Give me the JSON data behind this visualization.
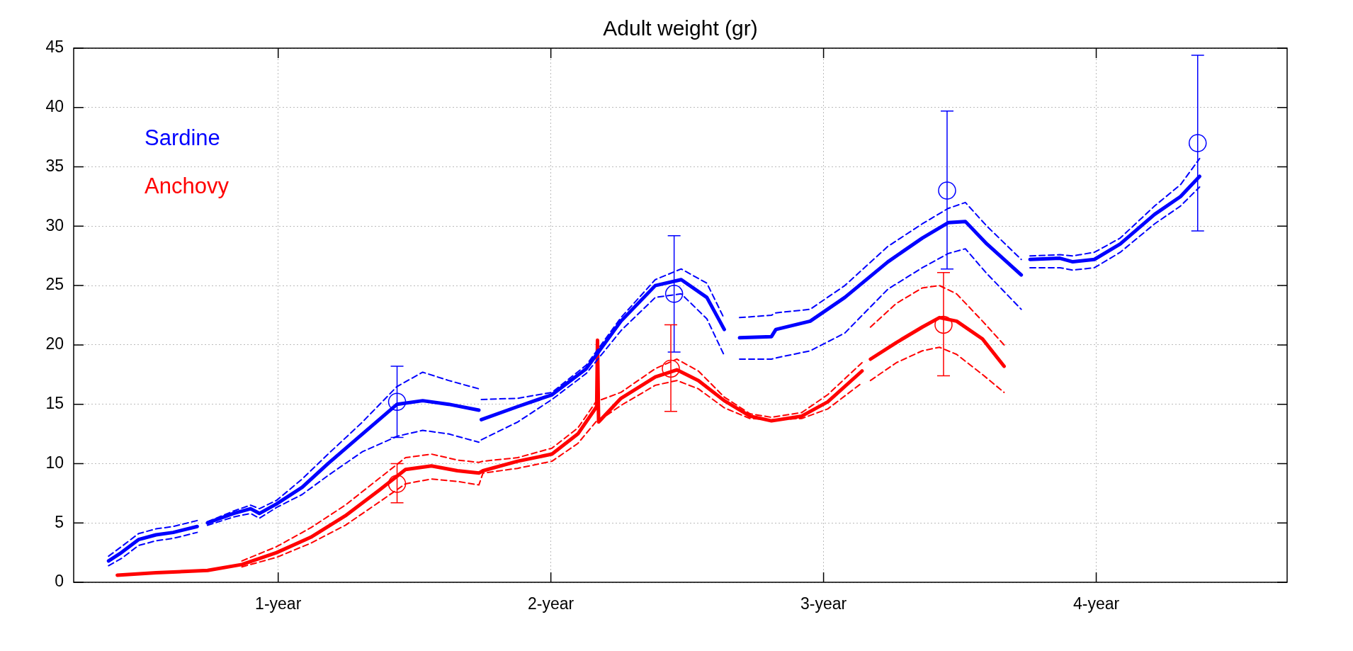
{
  "chart_data": {
    "type": "line",
    "title": "Adult weight (gr)",
    "xlim": [
      0.25,
      4.7
    ],
    "xticks": [
      {
        "value": 1,
        "label": "1-year"
      },
      {
        "value": 2,
        "label": "2-year"
      },
      {
        "value": 3,
        "label": "3-year"
      },
      {
        "value": 4,
        "label": "4-year"
      }
    ],
    "ylim": [
      0,
      45
    ],
    "yticks": [
      0,
      5,
      10,
      15,
      20,
      25,
      30,
      35,
      40,
      45
    ],
    "grid": true,
    "legend": "top left",
    "marker": "none",
    "series": [
      {
        "name": "Sardine",
        "color": "#0000ff",
        "line_style": "solid",
        "x": [
          0.378,
          0.425,
          0.488,
          0.552,
          0.615,
          0.703,
          0.72,
          0.741,
          0.836,
          0.899,
          0.931,
          0.994,
          1.088,
          1.183,
          1.309,
          1.436,
          1.53,
          1.625,
          1.736,
          1.74,
          1.745,
          1.878,
          2.004,
          2.13,
          2.257,
          2.383,
          2.478,
          2.572,
          2.636,
          2.66,
          2.692,
          2.809,
          2.825,
          2.951,
          3.078,
          3.236,
          3.362,
          3.457,
          3.52,
          3.599,
          3.725,
          3.74,
          3.757,
          3.867,
          3.914,
          3.993,
          4.088,
          4.214,
          4.309,
          4.379
        ],
        "values": [
          1.8,
          2.5,
          3.6,
          4.0,
          4.2,
          4.7,
          null,
          5.0,
          5.8,
          6.2,
          5.8,
          6.6,
          8.0,
          10.0,
          12.5,
          15.0,
          15.3,
          15.0,
          14.5,
          null,
          13.7,
          14.8,
          15.8,
          18.0,
          22.0,
          25.0,
          25.5,
          24.0,
          21.3,
          null,
          20.6,
          20.7,
          21.3,
          22.0,
          24.0,
          27.0,
          29.0,
          30.3,
          30.4,
          28.5,
          25.9,
          null,
          27.2,
          27.3,
          27.0,
          27.2,
          28.5,
          31.0,
          32.5,
          34.2
        ]
      },
      {
        "color": "#0000ff",
        "line_style": "dashed",
        "x": [
          0.378,
          0.425,
          0.488,
          0.552,
          0.615,
          0.703,
          0.72,
          0.741,
          0.836,
          0.899,
          0.931,
          0.994,
          1.088,
          1.183,
          1.309,
          1.436,
          1.53,
          1.625,
          1.736,
          1.74,
          1.745,
          1.878,
          2.004,
          2.13,
          2.257,
          2.383,
          2.478,
          2.572,
          2.636,
          2.66,
          2.692,
          2.809,
          2.825,
          2.951,
          3.078,
          3.236,
          3.362,
          3.457,
          3.52,
          3.599,
          3.725,
          3.74,
          3.757,
          3.867,
          3.914,
          3.993,
          4.088,
          4.214,
          4.309,
          4.379
        ],
        "values": [
          2.2,
          3.0,
          4.1,
          4.5,
          4.7,
          5.2,
          null,
          5.1,
          6.0,
          6.5,
          6.2,
          6.9,
          8.7,
          10.8,
          13.5,
          16.5,
          17.7,
          17.0,
          16.3,
          null,
          15.4,
          15.5,
          16.0,
          18.3,
          22.3,
          25.5,
          26.4,
          25.2,
          22.2,
          null,
          22.3,
          22.5,
          22.7,
          23.0,
          25.0,
          28.3,
          30.2,
          31.5,
          32.0,
          30.0,
          27.2,
          null,
          27.5,
          27.6,
          27.5,
          27.8,
          29.0,
          31.7,
          33.5,
          35.7
        ]
      },
      {
        "color": "#0000ff",
        "line_style": "dashed",
        "x": [
          0.378,
          0.425,
          0.488,
          0.552,
          0.615,
          0.703,
          0.72,
          0.741,
          0.836,
          0.899,
          0.931,
          0.994,
          1.088,
          1.183,
          1.309,
          1.436,
          1.53,
          1.625,
          1.736,
          1.74,
          1.745,
          1.878,
          2.004,
          2.13,
          2.257,
          2.383,
          2.478,
          2.572,
          2.636,
          2.66,
          2.692,
          2.809,
          2.825,
          2.951,
          3.078,
          3.236,
          3.362,
          3.457,
          3.52,
          3.599,
          3.725,
          3.74,
          3.757,
          3.867,
          3.914,
          3.993,
          4.088,
          4.214,
          4.309,
          4.379
        ],
        "values": [
          1.4,
          2.0,
          3.1,
          3.5,
          3.7,
          4.2,
          null,
          4.8,
          5.5,
          5.8,
          5.4,
          6.3,
          7.4,
          9.0,
          11.0,
          12.3,
          12.8,
          12.5,
          11.8,
          null,
          12.0,
          13.5,
          15.4,
          17.6,
          21.2,
          24.0,
          24.3,
          22.2,
          19.1,
          null,
          18.8,
          18.8,
          18.9,
          19.5,
          21.0,
          24.7,
          26.5,
          27.7,
          28.1,
          26.0,
          23.0,
          null,
          26.5,
          26.5,
          26.3,
          26.5,
          27.8,
          30.2,
          31.7,
          33.3
        ]
      },
      {
        "name": "Anchovy",
        "color": "#ff0000",
        "line_style": "solid",
        "x": [
          0.41,
          0.552,
          0.741,
          0.867,
          0.994,
          1.12,
          1.246,
          1.373,
          1.467,
          1.562,
          1.657,
          1.736,
          1.751,
          1.878,
          2.004,
          2.099,
          2.168,
          2.171,
          2.175,
          2.257,
          2.383,
          2.462,
          2.541,
          2.636,
          2.73,
          2.809,
          2.92,
          3.015,
          3.141,
          3.156,
          3.172,
          3.267,
          3.362,
          3.425,
          3.488,
          3.583,
          3.662
        ],
        "values": [
          0.6,
          0.8,
          1.0,
          1.5,
          2.5,
          3.8,
          5.6,
          7.8,
          9.5,
          9.8,
          9.4,
          9.2,
          9.4,
          10.2,
          10.8,
          12.5,
          14.8,
          20.4,
          13.5,
          15.5,
          17.3,
          17.9,
          17.0,
          15.3,
          14.0,
          13.6,
          14.0,
          15.2,
          17.8,
          null,
          18.8,
          20.2,
          21.5,
          22.3,
          22.0,
          20.5,
          18.2
        ]
      },
      {
        "color": "#ff0000",
        "line_style": "dashed",
        "x": [
          0.867,
          0.994,
          1.12,
          1.246,
          1.373,
          1.467,
          1.562,
          1.657,
          1.736,
          1.751,
          1.878,
          2.004,
          2.099,
          2.168,
          2.171,
          2.175,
          2.257,
          2.383,
          2.462,
          2.541,
          2.636,
          2.73,
          2.809,
          2.92,
          3.015,
          3.141,
          3.156,
          3.172,
          3.267,
          3.362,
          3.425,
          3.488,
          3.583,
          3.662
        ],
        "values": [
          1.8,
          3.0,
          4.6,
          6.5,
          8.8,
          10.5,
          10.8,
          10.3,
          10.1,
          10.2,
          10.5,
          11.3,
          13.0,
          15.3,
          15.3,
          15.3,
          16.0,
          18.0,
          18.8,
          17.8,
          15.6,
          14.2,
          13.9,
          14.3,
          15.8,
          18.5,
          null,
          21.5,
          23.5,
          24.8,
          25.0,
          24.3,
          22.0,
          20.0
        ]
      },
      {
        "color": "#ff0000",
        "line_style": "dashed",
        "x": [
          0.867,
          0.994,
          1.12,
          1.246,
          1.373,
          1.467,
          1.562,
          1.657,
          1.736,
          1.751,
          1.878,
          2.004,
          2.099,
          2.168,
          2.171,
          2.175,
          2.257,
          2.383,
          2.462,
          2.541,
          2.636,
          2.73,
          2.809,
          2.92,
          3.015,
          3.141,
          3.156,
          3.172,
          3.267,
          3.362,
          3.425,
          3.488,
          3.583,
          3.662
        ],
        "values": [
          1.3,
          2.1,
          3.3,
          4.8,
          6.8,
          8.3,
          8.7,
          8.5,
          8.2,
          9.2,
          9.6,
          10.2,
          11.7,
          13.6,
          13.6,
          13.6,
          14.9,
          16.6,
          17.0,
          16.3,
          14.7,
          13.8,
          13.7,
          13.8,
          14.6,
          16.8,
          null,
          17.0,
          18.5,
          19.5,
          19.8,
          19.2,
          17.5,
          16.0
        ]
      },
      {
        "color": "#0000ff",
        "type": "scatter",
        "marker": "circle",
        "x": [
          1.436,
          2.452,
          3.453,
          4.372
        ],
        "values": [
          15.2,
          24.3,
          33.0,
          37.0
        ],
        "errors": [
          [
            12.2,
            18.2
          ],
          [
            19.4,
            29.2
          ],
          [
            26.4,
            39.7
          ],
          [
            29.6,
            44.4
          ]
        ]
      },
      {
        "color": "#ff0000",
        "type": "scatter",
        "marker": "circle",
        "x": [
          1.436,
          2.44,
          3.44
        ],
        "values": [
          8.3,
          18.0,
          21.7
        ],
        "errors": [
          [
            6.7,
            10.0
          ],
          [
            14.4,
            21.7
          ],
          [
            17.4,
            26.1
          ]
        ]
      }
    ]
  }
}
